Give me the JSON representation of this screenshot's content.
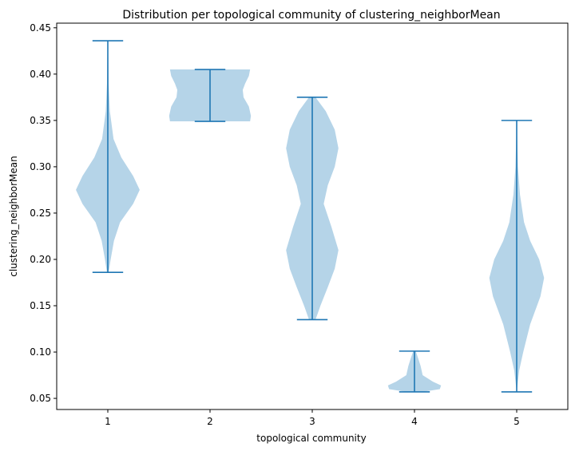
{
  "chart_data": {
    "type": "violin",
    "title": "Distribution per topological community of clustering_neighborMean",
    "xlabel": "topological community",
    "ylabel": "clustering_neighborMean",
    "categories": [
      "1",
      "2",
      "3",
      "4",
      "5"
    ],
    "ylim": [
      0.038,
      0.455
    ],
    "yticks": [
      0.05,
      0.1,
      0.15,
      0.2,
      0.25,
      0.3,
      0.35,
      0.4,
      0.45
    ],
    "ytick_labels": [
      "0.05",
      "0.10",
      "0.15",
      "0.20",
      "0.25",
      "0.30",
      "0.35",
      "0.40",
      "0.45"
    ],
    "violins": [
      {
        "category": "1",
        "min": 0.186,
        "max": 0.436,
        "density": [
          [
            0.186,
            0.02
          ],
          [
            0.2,
            0.07
          ],
          [
            0.22,
            0.15
          ],
          [
            0.24,
            0.3
          ],
          [
            0.26,
            0.62
          ],
          [
            0.275,
            0.78
          ],
          [
            0.29,
            0.62
          ],
          [
            0.31,
            0.33
          ],
          [
            0.33,
            0.14
          ],
          [
            0.36,
            0.05
          ],
          [
            0.39,
            0.02
          ],
          [
            0.436,
            0.005
          ]
        ]
      },
      {
        "category": "2",
        "min": 0.349,
        "max": 0.405,
        "density": [
          [
            0.349,
            0.98
          ],
          [
            0.355,
            1.0
          ],
          [
            0.365,
            0.95
          ],
          [
            0.375,
            0.82
          ],
          [
            0.383,
            0.8
          ],
          [
            0.39,
            0.86
          ],
          [
            0.398,
            0.95
          ],
          [
            0.405,
            0.98
          ]
        ]
      },
      {
        "category": "3",
        "min": 0.135,
        "max": 0.375,
        "density": [
          [
            0.135,
            0.08
          ],
          [
            0.15,
            0.2
          ],
          [
            0.17,
            0.38
          ],
          [
            0.19,
            0.55
          ],
          [
            0.21,
            0.64
          ],
          [
            0.235,
            0.47
          ],
          [
            0.26,
            0.28
          ],
          [
            0.28,
            0.38
          ],
          [
            0.3,
            0.55
          ],
          [
            0.32,
            0.64
          ],
          [
            0.34,
            0.55
          ],
          [
            0.36,
            0.33
          ],
          [
            0.375,
            0.08
          ]
        ]
      },
      {
        "category": "4",
        "min": 0.057,
        "max": 0.101,
        "density": [
          [
            0.057,
            0.18
          ],
          [
            0.06,
            0.62
          ],
          [
            0.064,
            0.65
          ],
          [
            0.068,
            0.45
          ],
          [
            0.075,
            0.2
          ],
          [
            0.085,
            0.15
          ],
          [
            0.092,
            0.1
          ],
          [
            0.101,
            0.03
          ]
        ]
      },
      {
        "category": "5",
        "min": 0.057,
        "max": 0.35,
        "density": [
          [
            0.057,
            0.0
          ],
          [
            0.08,
            0.06
          ],
          [
            0.1,
            0.16
          ],
          [
            0.13,
            0.33
          ],
          [
            0.16,
            0.58
          ],
          [
            0.18,
            0.67
          ],
          [
            0.2,
            0.55
          ],
          [
            0.22,
            0.33
          ],
          [
            0.24,
            0.18
          ],
          [
            0.27,
            0.08
          ],
          [
            0.3,
            0.03
          ],
          [
            0.35,
            0.0
          ]
        ]
      }
    ],
    "colors": {
      "body": "#b5d4e8",
      "line": "#1f77b4"
    },
    "grid": false
  }
}
